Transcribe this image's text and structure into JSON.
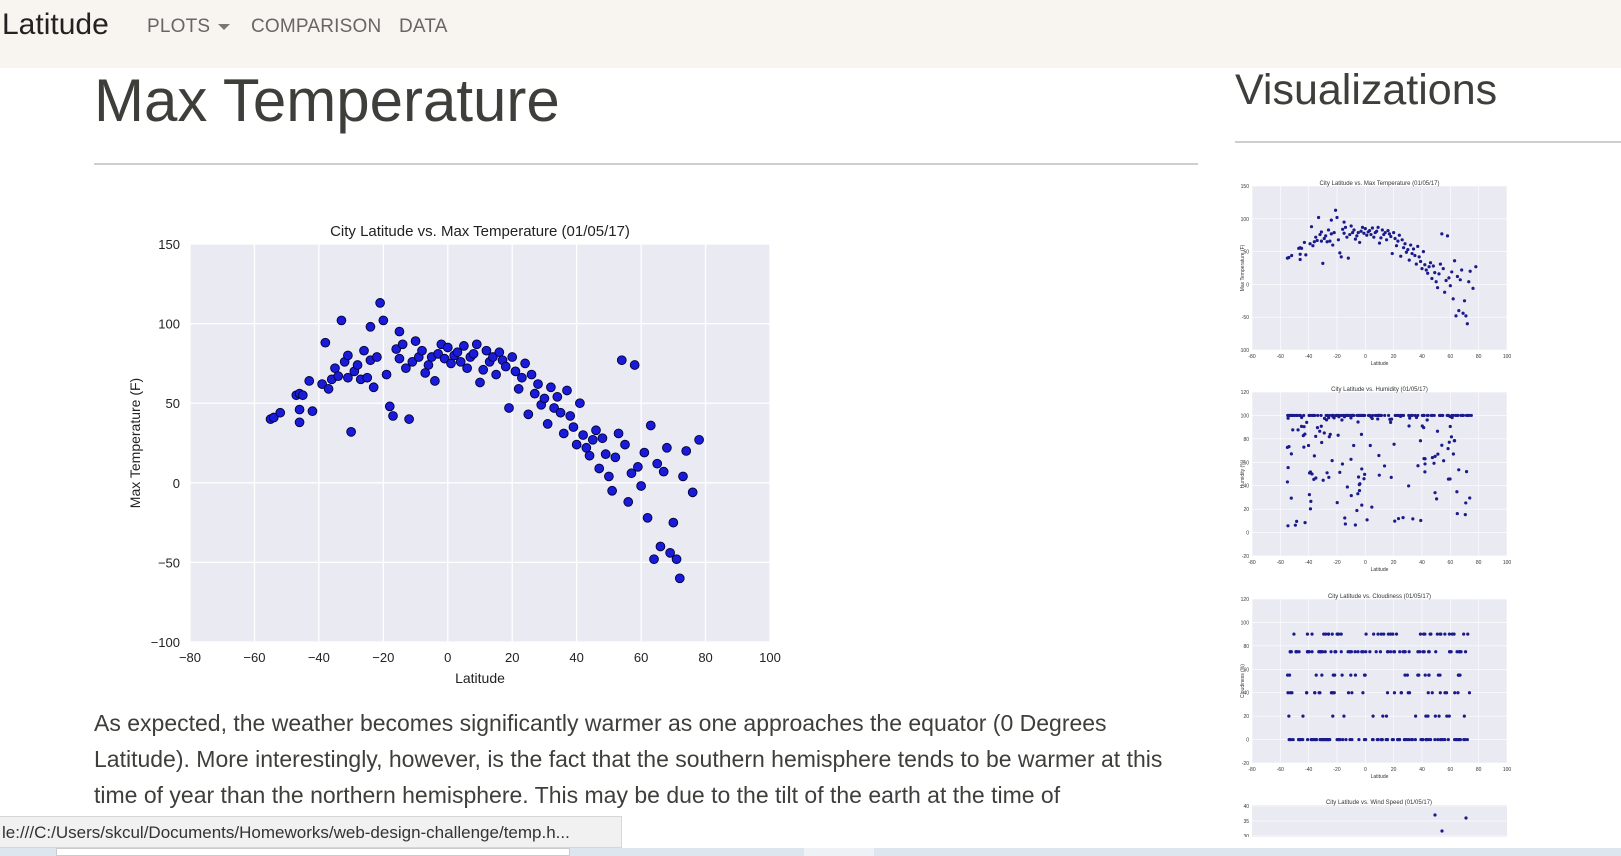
{
  "navbar": {
    "brand": "Latitude",
    "items": [
      {
        "label": "PLOTS",
        "dropdown": true
      },
      {
        "label": "COMPARISON"
      },
      {
        "label": "DATA"
      }
    ]
  },
  "main": {
    "title": "Max Temperature",
    "description": "As expected, the weather becomes significantly warmer as one approaches the equator (0 Degrees Latitude). More interestingly, however, is the fact that the southern hemisphere tends to be warmer at this time of year than the northern hemisphere. This may be due to the tilt of the earth at the time of"
  },
  "sidebar": {
    "title": "Visualizations"
  },
  "status_bar": {
    "url": "le:///C:/Users/skcul/Documents/Homeworks/web-design-challenge/temp.h..."
  },
  "colors": {
    "navbar_bg": "#f8f5f0",
    "plot_bg": "#eaeaf2",
    "point_fill": "#1a1adb",
    "point_edge": "#000033"
  },
  "chart_data": [
    {
      "type": "scatter",
      "title": "City Latitude vs. Max Temperature (01/05/17)",
      "xlabel": "Latitude",
      "ylabel": "Max Temperature (F)",
      "xlim": [
        -80,
        100
      ],
      "ylim": [
        -100,
        150
      ],
      "xticks": [
        -80,
        -60,
        -40,
        -20,
        0,
        20,
        40,
        60,
        80,
        100
      ],
      "yticks": [
        -100,
        -50,
        0,
        50,
        100,
        150
      ],
      "grid": true,
      "points": [
        [
          -55,
          40
        ],
        [
          -54,
          41
        ],
        [
          -52,
          44
        ],
        [
          -47,
          55
        ],
        [
          -46,
          56
        ],
        [
          -45,
          55
        ],
        [
          -46,
          46
        ],
        [
          -46,
          38
        ],
        [
          -43,
          64
        ],
        [
          -42,
          45
        ],
        [
          -39,
          62
        ],
        [
          -38,
          88
        ],
        [
          -37,
          59
        ],
        [
          -36,
          65
        ],
        [
          -35,
          72
        ],
        [
          -34,
          67
        ],
        [
          -33,
          102
        ],
        [
          -32,
          76
        ],
        [
          -31,
          80
        ],
        [
          -31,
          66
        ],
        [
          -30,
          32
        ],
        [
          -29,
          70
        ],
        [
          -28,
          74
        ],
        [
          -27,
          65
        ],
        [
          -26,
          83
        ],
        [
          -25,
          66
        ],
        [
          -24,
          77
        ],
        [
          -24,
          98
        ],
        [
          -23,
          60
        ],
        [
          -22,
          79
        ],
        [
          -21,
          113
        ],
        [
          -20,
          102
        ],
        [
          -19,
          68
        ],
        [
          -18,
          48
        ],
        [
          -17,
          42
        ],
        [
          -16,
          84
        ],
        [
          -15,
          78
        ],
        [
          -15,
          95
        ],
        [
          -14,
          87
        ],
        [
          -13,
          72
        ],
        [
          -12,
          40
        ],
        [
          -11,
          76
        ],
        [
          -10,
          89
        ],
        [
          -9,
          79
        ],
        [
          -8,
          83
        ],
        [
          -7,
          69
        ],
        [
          -6,
          74
        ],
        [
          -5,
          79
        ],
        [
          -4,
          64
        ],
        [
          -3,
          81
        ],
        [
          -2,
          87
        ],
        [
          -1,
          78
        ],
        [
          0,
          85
        ],
        [
          1,
          75
        ],
        [
          2,
          80
        ],
        [
          3,
          82
        ],
        [
          4,
          76
        ],
        [
          5,
          86
        ],
        [
          6,
          72
        ],
        [
          7,
          79
        ],
        [
          8,
          81
        ],
        [
          9,
          87
        ],
        [
          10,
          63
        ],
        [
          11,
          71
        ],
        [
          12,
          83
        ],
        [
          13,
          76
        ],
        [
          14,
          79
        ],
        [
          15,
          68
        ],
        [
          16,
          82
        ],
        [
          17,
          77
        ],
        [
          18,
          73
        ],
        [
          19,
          47
        ],
        [
          20,
          79
        ],
        [
          21,
          70
        ],
        [
          22,
          59
        ],
        [
          23,
          66
        ],
        [
          24,
          75
        ],
        [
          25,
          43
        ],
        [
          26,
          68
        ],
        [
          27,
          56
        ],
        [
          28,
          62
        ],
        [
          29,
          49
        ],
        [
          30,
          53
        ],
        [
          31,
          37
        ],
        [
          32,
          60
        ],
        [
          33,
          47
        ],
        [
          34,
          54
        ],
        [
          35,
          44
        ],
        [
          36,
          31
        ],
        [
          37,
          58
        ],
        [
          38,
          42
        ],
        [
          39,
          35
        ],
        [
          40,
          24
        ],
        [
          41,
          50
        ],
        [
          42,
          30
        ],
        [
          43,
          22
        ],
        [
          44,
          17
        ],
        [
          45,
          27
        ],
        [
          46,
          33
        ],
        [
          47,
          9
        ],
        [
          48,
          28
        ],
        [
          49,
          18
        ],
        [
          50,
          4
        ],
        [
          51,
          -5
        ],
        [
          52,
          16
        ],
        [
          53,
          31
        ],
        [
          54,
          77
        ],
        [
          55,
          24
        ],
        [
          56,
          -12
        ],
        [
          57,
          6
        ],
        [
          58,
          74
        ],
        [
          59,
          10
        ],
        [
          60,
          -2
        ],
        [
          61,
          19
        ],
        [
          62,
          -22
        ],
        [
          63,
          36
        ],
        [
          64,
          -48
        ],
        [
          65,
          12
        ],
        [
          66,
          -40
        ],
        [
          67,
          7
        ],
        [
          68,
          22
        ],
        [
          69,
          -44
        ],
        [
          70,
          -25
        ],
        [
          71,
          -48
        ],
        [
          72,
          -60
        ],
        [
          73,
          4
        ],
        [
          74,
          20
        ],
        [
          76,
          -6
        ],
        [
          78,
          27
        ]
      ]
    }
  ],
  "thumbnails": [
    {
      "title": "City Latitude vs. Max Temperature (01/05/17)",
      "xlabel": "Latitude",
      "ylabel": "Max Temperature (F)"
    },
    {
      "title": "City Latitude vs. Humidity (01/05/17)",
      "xlabel": "Latitude",
      "ylabel": "Humidity (%)"
    },
    {
      "title": "City Latitude vs. Cloudiness (01/05/17)",
      "xlabel": "Latitude",
      "ylabel": "Cloudiness (%)"
    },
    {
      "title": "City Latitude vs. Wind Speed (01/05/17)"
    }
  ]
}
